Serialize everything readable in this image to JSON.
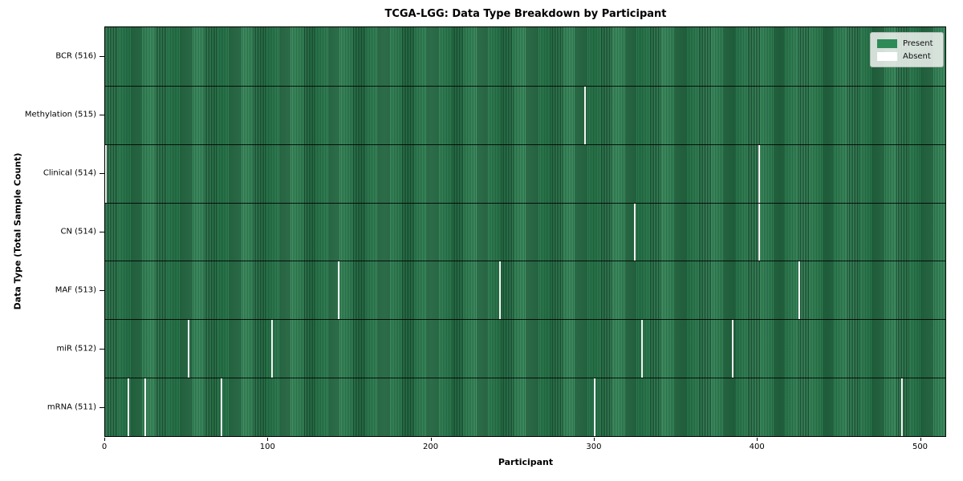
{
  "chart_data": {
    "type": "heatmap",
    "title": "TCGA-LGG: Data Type Breakdown by Participant",
    "xlabel": "Participant",
    "ylabel": "Data Type (Total Sample Count)",
    "x_ticks": [
      0,
      100,
      200,
      300,
      400,
      500
    ],
    "x_max": 516,
    "grid": false,
    "legend_position": "upper right",
    "legend": [
      {
        "label": "Present",
        "color": "#2e8b57"
      },
      {
        "label": "Absent",
        "color": "#ffffff"
      }
    ],
    "rows": [
      {
        "label": "BCR (516)",
        "name": "BCR",
        "total_samples": 516,
        "absent_participants": []
      },
      {
        "label": "Methylation (515)",
        "name": "Methylation",
        "total_samples": 515,
        "absent_participants": [
          294
        ]
      },
      {
        "label": "Clinical (514)",
        "name": "Clinical",
        "total_samples": 514,
        "absent_participants": [
          0,
          401
        ]
      },
      {
        "label": "CN (514)",
        "name": "CN",
        "total_samples": 514,
        "absent_participants": [
          325,
          401
        ]
      },
      {
        "label": "MAF (513)",
        "name": "MAF",
        "total_samples": 513,
        "absent_participants": [
          143,
          242,
          426
        ]
      },
      {
        "label": "miR (512)",
        "name": "miR",
        "total_samples": 512,
        "absent_participants": [
          51,
          102,
          329,
          385
        ]
      },
      {
        "label": "mRNA (511)",
        "name": "mRNA",
        "total_samples": 511,
        "absent_participants": [
          14,
          24,
          71,
          300,
          489
        ]
      }
    ],
    "colors": {
      "present": "#2e8b57",
      "bar_edge": "#17412a",
      "absent": "#f4f4f2",
      "legend_bg": "#eef1ee"
    }
  }
}
